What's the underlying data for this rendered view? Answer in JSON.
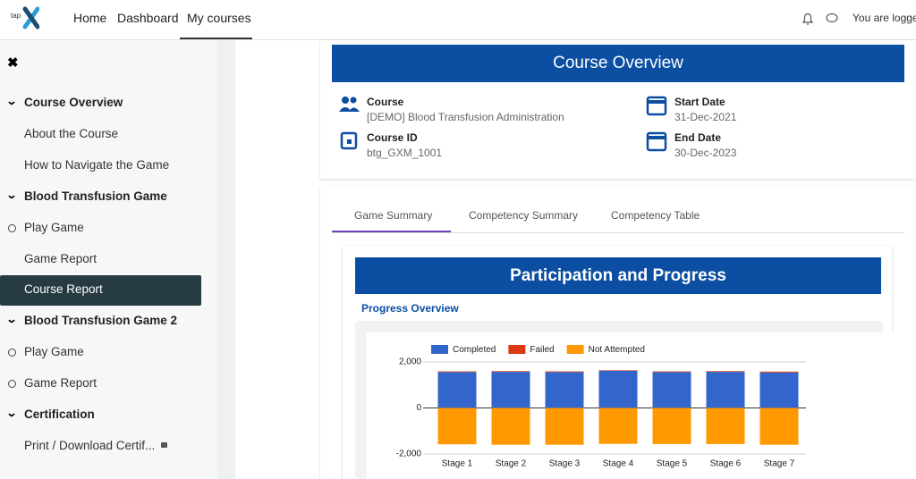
{
  "nav": {
    "logo": "tap",
    "links": [
      "Home",
      "Dashboard",
      "My courses"
    ],
    "active": 2,
    "user": "You are logge"
  },
  "sidebar": {
    "items": [
      {
        "label": "Course Overview",
        "kind": "section"
      },
      {
        "label": "About the Course",
        "kind": "plain"
      },
      {
        "label": "How to Navigate the Game",
        "kind": "plain"
      },
      {
        "label": "Blood Transfusion Game",
        "kind": "section"
      },
      {
        "label": "Play Game",
        "kind": "circle"
      },
      {
        "label": "Game Report",
        "kind": "plain"
      },
      {
        "label": "Course Report",
        "kind": "active"
      },
      {
        "label": "Blood Transfusion Game 2",
        "kind": "section"
      },
      {
        "label": "Play Game",
        "kind": "circle"
      },
      {
        "label": "Game Report",
        "kind": "circle"
      },
      {
        "label": "Certification",
        "kind": "section"
      },
      {
        "label": "Print / Download Certif...",
        "kind": "locked"
      }
    ]
  },
  "overview": {
    "title": "Course Overview",
    "fields": [
      {
        "label": "Course",
        "value": "[DEMO] Blood Transfusion Administration"
      },
      {
        "label": "Start Date",
        "value": "31-Dec-2021"
      },
      {
        "label": "Course ID",
        "value": "btg_GXM_1001"
      },
      {
        "label": "End Date",
        "value": "30-Dec-2023"
      }
    ]
  },
  "tabs": {
    "items": [
      "Game Summary",
      "Competency Summary",
      "Competency Table"
    ],
    "active": 0
  },
  "section": {
    "title": "Participation and Progress",
    "subtitle": "Progress Overview"
  },
  "chart_data": {
    "type": "bar",
    "stacked": true,
    "categories": [
      "Stage 1",
      "Stage 2",
      "Stage 3",
      "Stage 4",
      "Stage 5",
      "Stage 6",
      "Stage 7"
    ],
    "series": [
      {
        "name": "Completed",
        "color": "#3366cc",
        "values": [
          1560,
          1570,
          1560,
          1620,
          1560,
          1570,
          1540
        ]
      },
      {
        "name": "Failed",
        "color": "#dc3912",
        "values": [
          30,
          30,
          30,
          20,
          30,
          30,
          40
        ]
      },
      {
        "name": "Not Attempted",
        "color": "#ff9900",
        "values": [
          -1580,
          -1600,
          -1600,
          -1560,
          -1570,
          -1570,
          -1600
        ]
      }
    ],
    "ylim": [
      -2000,
      2000
    ],
    "yticks": [
      {
        "value": -2000,
        "label": "-2,000"
      },
      0,
      {
        "value": 2000,
        "label": "2,000"
      }
    ],
    "grid": true,
    "legend": "top"
  }
}
